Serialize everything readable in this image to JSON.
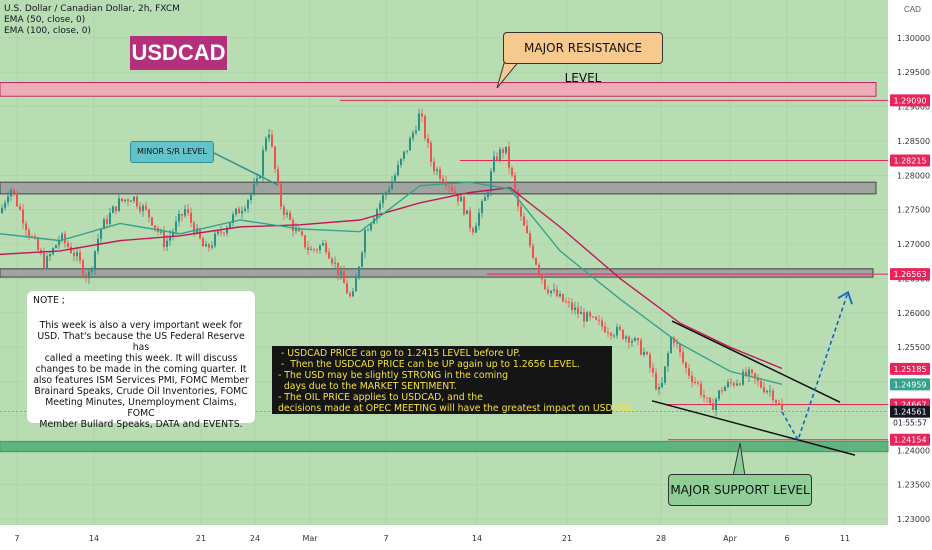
{
  "legend": {
    "title": "U.S. Dollar / Canadian Dollar, 2h, FXCM",
    "indicators": [
      "EMA (50, close, 0)",
      "EMA (100, close, 0)"
    ]
  },
  "symbol_badge": "USDCAD",
  "currency_label": "CAD",
  "annotations": {
    "major_resistance": "MAJOR RESISTANCE LEVEL",
    "major_support": "MAJOR SUPPORT LEVEL",
    "minor_sr": "MINOR S/R LEVEL"
  },
  "note": {
    "title": "NOTE ;",
    "lines": [
      "This week is also a very important week for",
      "USD.  That's because the US Federal Reserve has",
      "called a meeting this week.  It will discuss",
      "changes to be made in the coming quarter.  It",
      "also features ISM Services PMI, FOMC Member",
      "Brainard Speaks, Crude Oil Inventories, FOMC",
      "Meeting Minutes, Unemployment Claims, FOMC",
      "Member Bullard Speaks, DATA and EVENTS."
    ]
  },
  "analysis": {
    "lines": [
      " - USDCAD PRICE can go to 1.2415 LEVEL before UP.",
      " -  Then the USDCAD PRICE can be UP again up to 1.2656 LEVEL.",
      "- The USD may be slightly STRONG in the coming",
      "  days due to the MARKET SENTIMENT.",
      "- The OIL PRICE applies to USDCAD, and the",
      "decisions made at OPEC MEETING will have the greatest impact on USDCAD."
    ]
  },
  "colors": {
    "background_green": "#b9ddb3",
    "resistance_zone": "#f4a7b9",
    "support_zone": "#55b07a",
    "grey_zone": "#9e9e9e",
    "level_line": "#e8245a",
    "ema50": "#35a38d",
    "ema100": "#c2185b",
    "candle_up": "#2f8f86",
    "candle_down": "#ef5350",
    "projection": "#1565c0",
    "wedge": "#111111"
  },
  "chart_data": {
    "type": "candlestick",
    "symbol": "USDCAD",
    "timeframe": "2h",
    "ylim": [
      1.2255,
      1.3055
    ],
    "y_ticks": [
      "1.30000",
      "1.29500",
      "1.29000",
      "1.28500",
      "1.28000",
      "1.27500",
      "1.27000",
      "1.26500",
      "1.26000",
      "1.25500",
      "1.25000",
      "1.24500",
      "1.24000",
      "1.23500",
      "1.23000"
    ],
    "x_ticks": [
      "7",
      "14",
      "21",
      "24",
      "Mar",
      "7",
      "14",
      "21",
      "28",
      "Apr",
      "6",
      "11"
    ],
    "price_labels": [
      {
        "label": "1.29090",
        "value": 1.2909,
        "color": "#e8245a"
      },
      {
        "label": "1.28215",
        "value": 1.28215,
        "color": "#e8245a"
      },
      {
        "label": "1.26563",
        "value": 1.26563,
        "color": "#e8245a"
      },
      {
        "label": "1.25185",
        "value": 1.25185,
        "color": "#e8245a"
      },
      {
        "label": "1.24959",
        "value": 1.24959,
        "color": "#35a38d"
      },
      {
        "label": "1.24667",
        "value": 1.24667,
        "color": "#e8245a"
      },
      {
        "label": "1.24561",
        "value": 1.24561,
        "color": "#131722"
      },
      {
        "label": "1.24154",
        "value": 1.24154,
        "color": "#e8245a"
      }
    ],
    "countdown": "01:55:57",
    "zones": [
      {
        "name": "major-resistance",
        "y": [
          1.2915,
          1.2935
        ]
      },
      {
        "name": "minor-sr-upper",
        "y": [
          1.2773,
          1.279
        ]
      },
      {
        "name": "minor-sr-lower",
        "y": [
          1.2652,
          1.2664
        ]
      },
      {
        "name": "major-support",
        "y": [
          1.2398,
          1.2413
        ]
      }
    ],
    "path": [
      [
        0,
        1.2745
      ],
      [
        10,
        1.2785
      ],
      [
        28,
        1.272
      ],
      [
        45,
        1.267
      ],
      [
        60,
        1.271
      ],
      [
        75,
        1.2685
      ],
      [
        88,
        1.265
      ],
      [
        100,
        1.272
      ],
      [
        118,
        1.276
      ],
      [
        132,
        1.277
      ],
      [
        150,
        1.274
      ],
      [
        165,
        1.27
      ],
      [
        185,
        1.275
      ],
      [
        205,
        1.269
      ],
      [
        225,
        1.2725
      ],
      [
        245,
        1.276
      ],
      [
        258,
        1.279
      ],
      [
        268,
        1.2875
      ],
      [
        280,
        1.276
      ],
      [
        295,
        1.272
      ],
      [
        310,
        1.269
      ],
      [
        325,
        1.27
      ],
      [
        340,
        1.2655
      ],
      [
        352,
        1.2615
      ],
      [
        365,
        1.272
      ],
      [
        380,
        1.276
      ],
      [
        395,
        1.28
      ],
      [
        410,
        1.285
      ],
      [
        420,
        1.289
      ],
      [
        432,
        1.2815
      ],
      [
        448,
        1.279
      ],
      [
        462,
        1.276
      ],
      [
        472,
        1.272
      ],
      [
        485,
        1.2765
      ],
      [
        495,
        1.2825
      ],
      [
        505,
        1.284
      ],
      [
        512,
        1.2795
      ],
      [
        520,
        1.274
      ],
      [
        532,
        1.269
      ],
      [
        545,
        1.264
      ],
      [
        560,
        1.262
      ],
      [
        578,
        1.26
      ],
      [
        595,
        1.2585
      ],
      [
        612,
        1.2575
      ],
      [
        630,
        1.2565
      ],
      [
        645,
        1.254
      ],
      [
        660,
        1.248
      ],
      [
        672,
        1.257
      ],
      [
        685,
        1.252
      ],
      [
        698,
        1.2495
      ],
      [
        710,
        1.246
      ],
      [
        722,
        1.249
      ],
      [
        735,
        1.25
      ],
      [
        748,
        1.251
      ],
      [
        760,
        1.2495
      ],
      [
        772,
        1.2485
      ],
      [
        782,
        1.2456
      ]
    ],
    "ema50": [
      [
        0,
        1.2715
      ],
      [
        60,
        1.2705
      ],
      [
        120,
        1.273
      ],
      [
        180,
        1.2715
      ],
      [
        240,
        1.2735
      ],
      [
        300,
        1.2722
      ],
      [
        360,
        1.2718
      ],
      [
        420,
        1.2785
      ],
      [
        470,
        1.279
      ],
      [
        510,
        1.278
      ],
      [
        560,
        1.269
      ],
      [
        620,
        1.262
      ],
      [
        680,
        1.2555
      ],
      [
        730,
        1.2515
      ],
      [
        782,
        1.2496
      ]
    ],
    "ema100": [
      [
        0,
        1.2685
      ],
      [
        60,
        1.269
      ],
      [
        120,
        1.2705
      ],
      [
        180,
        1.2712
      ],
      [
        240,
        1.2725
      ],
      [
        300,
        1.2728
      ],
      [
        360,
        1.2735
      ],
      [
        420,
        1.276
      ],
      [
        470,
        1.2775
      ],
      [
        510,
        1.2782
      ],
      [
        560,
        1.2725
      ],
      [
        620,
        1.265
      ],
      [
        680,
        1.2585
      ],
      [
        730,
        1.255
      ],
      [
        782,
        1.2519
      ]
    ],
    "wedge_upper": [
      [
        672,
        1.2588
      ],
      [
        840,
        1.247
      ]
    ],
    "wedge_lower": [
      [
        652,
        1.2472
      ],
      [
        855,
        1.2393
      ]
    ],
    "projection": [
      [
        782,
        1.2456
      ],
      [
        798,
        1.2415
      ],
      [
        848,
        1.263
      ]
    ]
  }
}
